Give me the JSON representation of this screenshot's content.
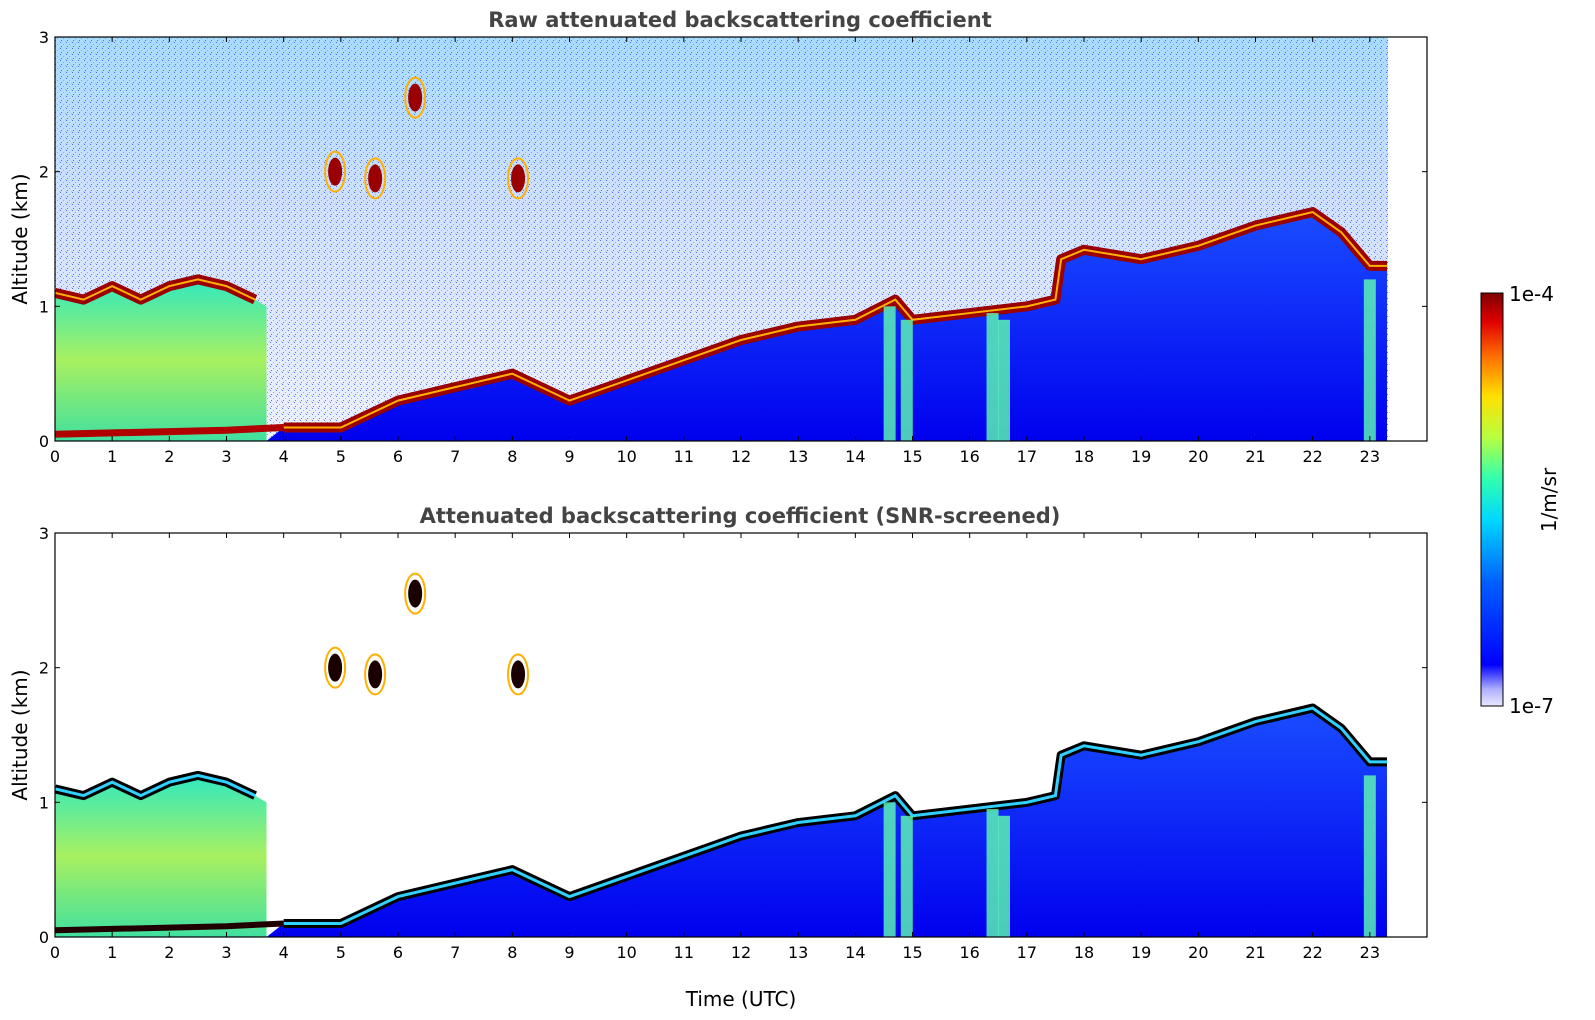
{
  "chart_data": [
    {
      "type": "heatmap",
      "title": "Raw attenuated backscattering coefficient",
      "xlabel": "",
      "ylabel": "Altitude (km)",
      "xlim": [
        0,
        24
      ],
      "ylim": [
        0,
        3
      ],
      "x_ticks": [
        "0",
        "1",
        "2",
        "3",
        "4",
        "5",
        "6",
        "7",
        "8",
        "9",
        "10",
        "11",
        "12",
        "13",
        "14",
        "15",
        "16",
        "17",
        "18",
        "19",
        "20",
        "21",
        "22",
        "23"
      ],
      "y_ticks": [
        "0",
        "1",
        "2",
        "3"
      ],
      "data_end_hour": 23.3,
      "grid": false,
      "layers": {
        "boundary_layer_top_km": [
          [
            0,
            1.1
          ],
          [
            0.5,
            1.05
          ],
          [
            1,
            1.15
          ],
          [
            1.5,
            1.05
          ],
          [
            2,
            1.15
          ],
          [
            2.5,
            1.2
          ],
          [
            3,
            1.15
          ],
          [
            3.5,
            1.05
          ],
          [
            4,
            0.1
          ],
          [
            5,
            0.1
          ],
          [
            6,
            0.3
          ],
          [
            7,
            0.4
          ],
          [
            8,
            0.5
          ],
          [
            9,
            0.3
          ],
          [
            10,
            0.45
          ],
          [
            11,
            0.6
          ],
          [
            12,
            0.75
          ],
          [
            13,
            0.85
          ],
          [
            14,
            0.9
          ],
          [
            14.7,
            1.05
          ],
          [
            15,
            0.9
          ],
          [
            16,
            0.95
          ],
          [
            17,
            1.0
          ],
          [
            17.5,
            1.05
          ],
          [
            17.6,
            1.35
          ],
          [
            18,
            1.42
          ],
          [
            19,
            1.35
          ],
          [
            20,
            1.45
          ],
          [
            21,
            1.6
          ],
          [
            22,
            1.7
          ],
          [
            22.5,
            1.55
          ],
          [
            23,
            1.3
          ],
          [
            23.3,
            1.3
          ]
        ],
        "surface_layer_top_km": [
          [
            0,
            0.05
          ],
          [
            1,
            0.06
          ],
          [
            2,
            0.07
          ],
          [
            3,
            0.08
          ],
          [
            4,
            0.1
          ]
        ],
        "upper_clouds": [
          {
            "t": 4.9,
            "z": 2.0
          },
          {
            "t": 5.6,
            "z": 1.95
          },
          {
            "t": 6.3,
            "z": 2.55
          },
          {
            "t": 8.1,
            "z": 1.95
          }
        ]
      }
    },
    {
      "type": "heatmap",
      "title": "Attenuated backscattering coefficient (SNR-screened)",
      "xlabel": "Time (UTC)",
      "ylabel": "Altitude (km)",
      "xlim": [
        0,
        24
      ],
      "ylim": [
        0,
        3
      ],
      "x_ticks": [
        "0",
        "1",
        "2",
        "3",
        "4",
        "5",
        "6",
        "7",
        "8",
        "9",
        "10",
        "11",
        "12",
        "13",
        "14",
        "15",
        "16",
        "17",
        "18",
        "19",
        "20",
        "21",
        "22",
        "23"
      ],
      "y_ticks": [
        "0",
        "1",
        "2",
        "3"
      ],
      "data_end_hour": 23.3,
      "grid": false
    }
  ],
  "colorbar": {
    "max_label": "1e-4",
    "min_label": "1e-7",
    "unit_label": "1/m/sr",
    "scale": "log",
    "colormap": "jet"
  },
  "colors": {
    "low": "#0000ff",
    "mid": "#00ffaa",
    "high": "#8b0000",
    "text": "#444444"
  }
}
